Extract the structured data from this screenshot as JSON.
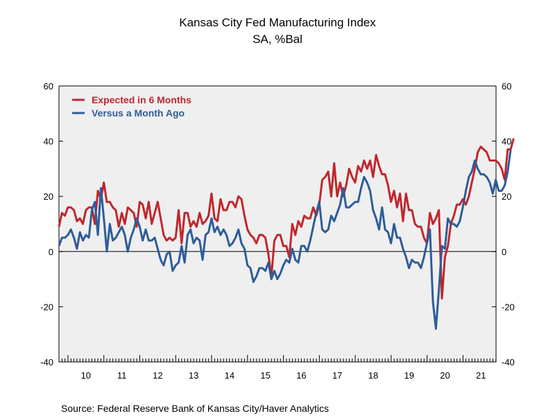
{
  "chart_data": {
    "type": "line",
    "title": "Kansas City Fed Manufacturing Index",
    "subtitle": "SA, %Bal",
    "source": "Source:  Federal Reserve Bank of Kansas City/Haver Analytics",
    "ylim": [
      -40,
      60
    ],
    "y_ticks": [
      60,
      40,
      20,
      0,
      -20,
      -40
    ],
    "y_tick_labels": [
      "60",
      "40",
      "20",
      "0",
      "-20",
      "-40"
    ],
    "x_start": 2009.75,
    "x_end": 2021.92,
    "year_labels": [
      "10",
      "11",
      "12",
      "13",
      "14",
      "15",
      "16",
      "17",
      "18",
      "19",
      "20",
      "21"
    ],
    "legend_position": "top-left",
    "zero_line": true,
    "colors": {
      "expected": "#c0272d",
      "versus": "#2e5d98",
      "plot_bg": "#efefef"
    },
    "series": [
      {
        "name": "Expected in 6 Months",
        "color": "#c0272d",
        "start": 2009.75,
        "step": 0.0833,
        "values": [
          9,
          14,
          13,
          16,
          16,
          15,
          11,
          12,
          10,
          15,
          16,
          16,
          10,
          22,
          19,
          25,
          18,
          18,
          16,
          15,
          9,
          14,
          10,
          16,
          15,
          14,
          9,
          18,
          17,
          12,
          18,
          10,
          14,
          18,
          12,
          6,
          4,
          5,
          4,
          5,
          15,
          3,
          14,
          14,
          9,
          11,
          9,
          14,
          10,
          11,
          13,
          21,
          12,
          11,
          19,
          15,
          15,
          18,
          18,
          16,
          20,
          19,
          13,
          8,
          6,
          5,
          3,
          6,
          6,
          5,
          -1,
          -9,
          4,
          6,
          6,
          2,
          2,
          -2,
          10,
          6,
          11,
          9,
          13,
          12,
          12,
          16,
          13,
          17,
          26,
          27,
          29,
          20,
          32,
          20,
          25,
          20,
          24,
          30,
          27,
          25,
          31,
          29,
          33,
          30,
          33,
          27,
          35,
          31,
          28,
          28,
          24,
          18,
          22,
          16,
          21,
          11,
          21,
          15,
          15,
          10,
          9,
          9,
          5,
          3,
          14,
          10,
          12,
          15,
          -17,
          -2,
          2,
          10,
          13,
          17,
          17,
          19,
          17,
          20,
          25,
          30,
          36,
          38,
          37,
          36,
          33,
          33,
          33,
          32,
          30,
          26,
          37,
          37,
          41
        ]
      },
      {
        "name": "Versus a Month Ago",
        "color": "#2e5d98",
        "start": 2009.75,
        "step": 0.0833,
        "values": [
          2,
          5,
          5,
          6,
          8,
          5,
          1,
          7,
          4,
          6,
          5,
          15,
          18,
          6,
          23,
          12,
          0,
          10,
          4,
          5,
          7,
          9,
          6,
          0,
          5,
          8,
          12,
          9,
          4,
          8,
          4,
          4,
          5,
          1,
          -3,
          -5,
          -1,
          0,
          -7,
          -5,
          -4,
          2,
          -4,
          6,
          8,
          3,
          5,
          4,
          -3,
          6,
          7,
          12,
          7,
          9,
          6,
          8,
          6,
          2,
          3,
          5,
          8,
          3,
          1,
          -5,
          -6,
          -11,
          -9,
          -6,
          -6,
          -7,
          -4,
          -10,
          -7,
          -10,
          -8,
          -5,
          -3,
          -4,
          1,
          -3,
          -4,
          2,
          2,
          0,
          4,
          9,
          14,
          18,
          8,
          7,
          8,
          13,
          11,
          14,
          17,
          23,
          16,
          16,
          17,
          18,
          18,
          23,
          27,
          25,
          22,
          15,
          12,
          8,
          16,
          8,
          7,
          3,
          10,
          5,
          5,
          1,
          -2,
          -6,
          -3,
          -4,
          -4,
          -6,
          -2,
          3,
          8,
          -18,
          -28,
          -14,
          2,
          1,
          12,
          10,
          10,
          9,
          11,
          16,
          22,
          27,
          29,
          33,
          30,
          28,
          28,
          27,
          25,
          21,
          26,
          22,
          22,
          24,
          29,
          37
        ]
      }
    ]
  }
}
